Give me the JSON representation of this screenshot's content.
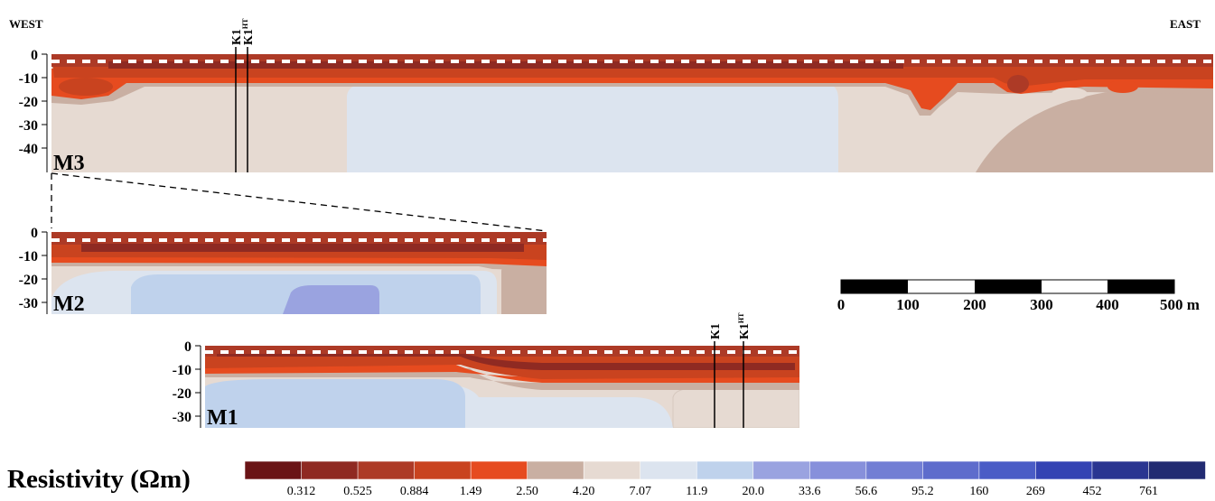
{
  "labels": {
    "west": "WEST",
    "east": "EAST",
    "legend_title": "Resistivity (Ωm)"
  },
  "panels": {
    "m3": {
      "label": "M3",
      "depth_ticks": [
        "0",
        "-10",
        "-20",
        "-30",
        "-40"
      ]
    },
    "m2": {
      "label": "M2",
      "depth_ticks": [
        "0",
        "-10",
        "-20",
        "-30"
      ]
    },
    "m1": {
      "label": "M1",
      "depth_ticks": [
        "0",
        "-10",
        "-20",
        "-30"
      ]
    }
  },
  "boreholes": {
    "k1": "K1",
    "k1_ht": "K1",
    "k1_ht_sub": "HT"
  },
  "scale_bar": {
    "ticks": [
      "0",
      "100",
      "200",
      "300",
      "400",
      "500 m"
    ]
  },
  "colorbar": {
    "colors": [
      "#6a1416",
      "#8f2a22",
      "#ad3a26",
      "#c9431f",
      "#e64b1f",
      "#c9afa2",
      "#e6dad2",
      "#dce4ef",
      "#bfd2ec",
      "#9aa3e0",
      "#8790db",
      "#727ed4",
      "#5e6ccc",
      "#4a5cc6",
      "#3443b3",
      "#2a3591",
      "#222b72"
    ],
    "labels": [
      "0.312",
      "0.525",
      "0.884",
      "1.49",
      "2.50",
      "4.20",
      "7.07",
      "11.9",
      "20.0",
      "33.6",
      "56.6",
      "95.2",
      "160",
      "269",
      "452",
      "761"
    ]
  }
}
